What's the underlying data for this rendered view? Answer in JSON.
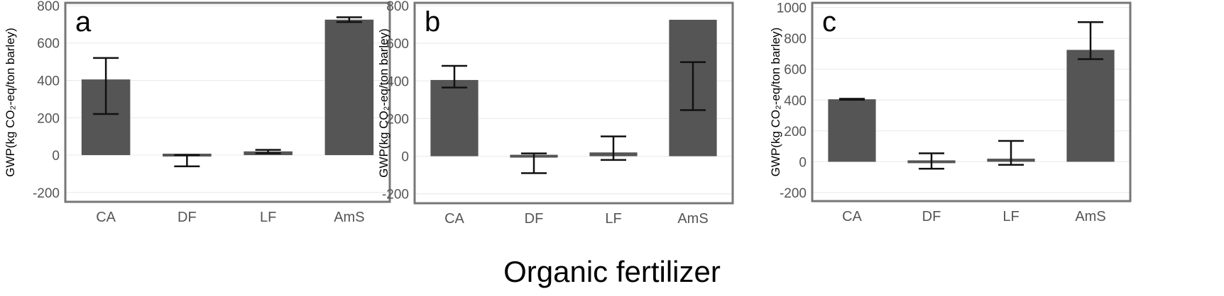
{
  "figure": {
    "xlabel": "Organic fertilizer"
  },
  "colors": {
    "bar": "#555555",
    "panel_border": "#777777",
    "gridline": "#e8e8e8",
    "errorbar": "#111111"
  },
  "chart_data": [
    {
      "type": "bar",
      "panel_label": "a",
      "ylabel": "GWP(kg CO₂-eq/ton barley)",
      "categories": [
        "CA",
        "DF",
        "LF",
        "AmS"
      ],
      "values": [
        405,
        -15,
        20,
        725
      ],
      "error_low": [
        220,
        -60,
        10,
        712
      ],
      "error_high": [
        520,
        0,
        28,
        738
      ],
      "ylim": [
        -250,
        815
      ],
      "yticks": [
        -200,
        0,
        200,
        400,
        600,
        800
      ],
      "grid": true
    },
    {
      "type": "bar",
      "panel_label": "b",
      "ylabel": "GWP(kg CO₂-eq/ton barley)",
      "categories": [
        "CA",
        "DF",
        "LF",
        "AmS"
      ],
      "values": [
        405,
        -15,
        20,
        725
      ],
      "error_low": [
        365,
        -90,
        -20,
        245
      ],
      "error_high": [
        480,
        15,
        105,
        500
      ],
      "ylim": [
        -250,
        815
      ],
      "yticks": [
        -200,
        0,
        200,
        400,
        600,
        800
      ],
      "grid": true
    },
    {
      "type": "bar",
      "panel_label": "c",
      "ylabel": "GWP(kg CO₂-eq/ton barley)",
      "categories": [
        "CA",
        "DF",
        "LF",
        "AmS"
      ],
      "values": [
        405,
        -15,
        20,
        725
      ],
      "error_low": [
        402,
        -45,
        -20,
        665
      ],
      "error_high": [
        408,
        55,
        135,
        905
      ],
      "ylim": [
        -255,
        1030
      ],
      "yticks": [
        -200,
        0,
        200,
        400,
        600,
        800,
        1000
      ],
      "grid": true
    }
  ]
}
